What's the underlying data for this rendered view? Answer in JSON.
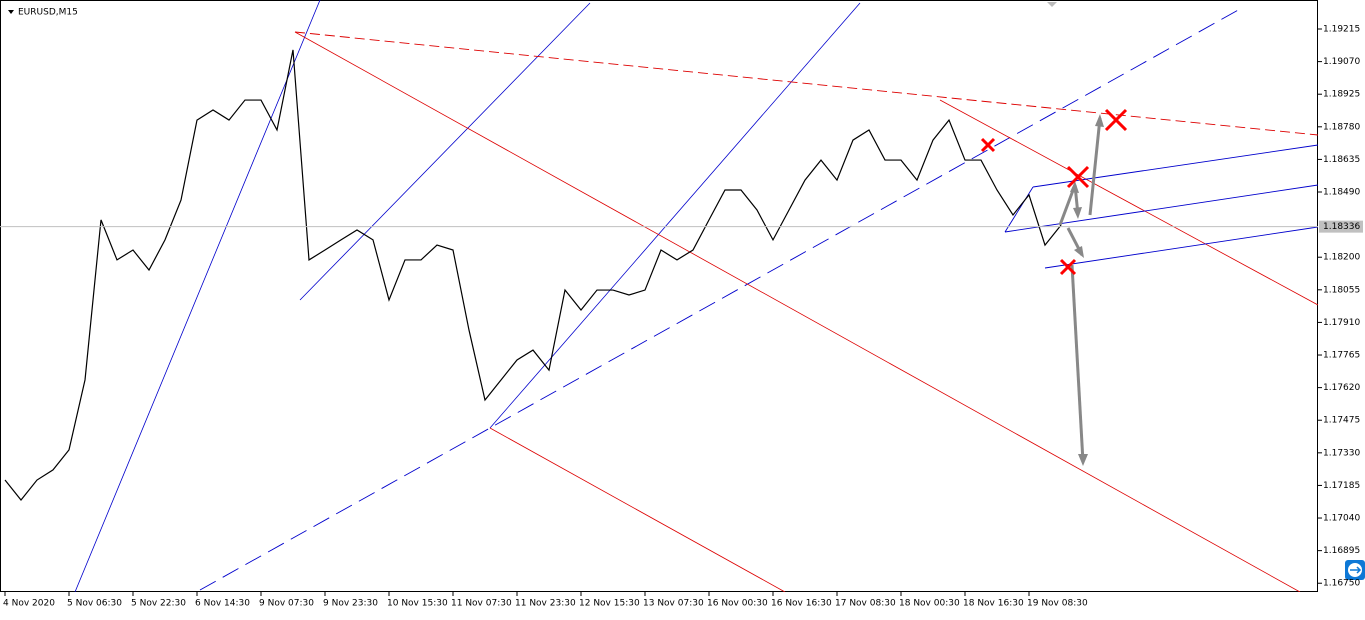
{
  "chart_data": {
    "type": "line",
    "title": "EURUSD,M15",
    "color": "#000000",
    "categories": [
      "4 Nov 2020",
      null,
      null,
      null,
      "5 Nov 06:30",
      null,
      null,
      null,
      "5 Nov 22:30",
      null,
      null,
      null,
      "6 Nov 14:30",
      null,
      null,
      null,
      "9 Nov 07:30",
      null,
      null,
      null,
      "9 Nov 23:30",
      null,
      null,
      null,
      "10 Nov 15:30",
      null,
      null,
      null,
      "11 Nov 07:30",
      null,
      null,
      null,
      "11 Nov 23:30",
      null,
      null,
      null,
      "12 Nov 15:30",
      null,
      null,
      null,
      "13 Nov 07:30",
      null,
      null,
      null,
      "16 Nov 00:30",
      null,
      null,
      null,
      "16 Nov 16:30",
      null,
      null,
      null,
      "17 Nov 08:30",
      null,
      null,
      null,
      "18 Nov 00:30",
      null,
      null,
      null,
      "18 Nov 16:30",
      null,
      null,
      null,
      "19 Nov 08:30",
      null,
      null
    ],
    "values": [
      1.17209,
      1.1712,
      1.17209,
      1.17254,
      1.17343,
      1.17654,
      1.18366,
      1.18188,
      1.18232,
      1.18143,
      1.18277,
      1.18454,
      1.1881,
      1.18855,
      1.1881,
      1.18899,
      1.18899,
      1.18766,
      1.19122,
      1.18188,
      1.18232,
      1.18277,
      1.18321,
      1.18277,
      1.1801,
      1.18188,
      1.18188,
      1.18254,
      1.18232,
      1.17876,
      1.17565,
      1.17654,
      1.17743,
      1.17787,
      1.17698,
      1.18054,
      1.17965,
      1.18054,
      1.18054,
      1.18032,
      1.18054,
      1.18232,
      1.18188,
      1.18232,
      1.18366,
      1.18499,
      1.18499,
      1.1841,
      1.18277,
      1.1841,
      1.18543,
      1.18632,
      1.18543,
      1.18721,
      1.18766,
      1.18632,
      1.18632,
      1.18543,
      1.18721,
      1.1881,
      1.18632,
      1.18632,
      1.18499,
      1.18388,
      1.18477,
      1.18254,
      1.18343
    ],
    "ylim": [
      1.16711,
      1.19344
    ],
    "yticks": [
      {
        "value": 1.19215,
        "label": "1.19215"
      },
      {
        "value": 1.1907,
        "label": "1.19070"
      },
      {
        "value": 1.18925,
        "label": "1.18925"
      },
      {
        "value": 1.1878,
        "label": "1.18780"
      },
      {
        "value": 1.18635,
        "label": "1.18635"
      },
      {
        "value": 1.1849,
        "label": "1.18490"
      },
      {
        "value": 1.182,
        "label": "1.18200"
      },
      {
        "value": 1.18055,
        "label": "1.18055"
      },
      {
        "value": 1.1791,
        "label": "1.17910"
      },
      {
        "value": 1.17765,
        "label": "1.17765"
      },
      {
        "value": 1.1762,
        "label": "1.17620"
      },
      {
        "value": 1.17475,
        "label": "1.17475"
      },
      {
        "value": 1.1733,
        "label": "1.17330"
      },
      {
        "value": 1.17185,
        "label": "1.17185"
      },
      {
        "value": 1.1704,
        "label": "1.17040"
      },
      {
        "value": 1.16895,
        "label": "1.16895"
      },
      {
        "value": 1.1675,
        "label": "1.16750"
      }
    ],
    "current_price": {
      "value": 1.18336,
      "label": "1.18336"
    }
  }
}
